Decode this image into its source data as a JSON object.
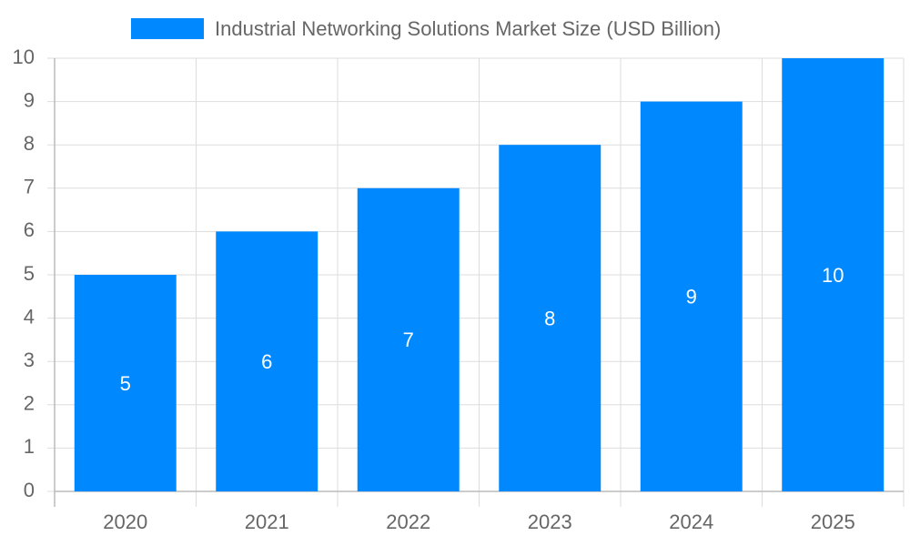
{
  "chart_data": {
    "type": "bar",
    "categories": [
      "2020",
      "2021",
      "2022",
      "2023",
      "2024",
      "2025"
    ],
    "series": [
      {
        "name": "Industrial Networking Solutions Market Size (USD Billion)",
        "color": "#0088ff",
        "values": [
          5,
          6,
          7,
          8,
          9,
          10
        ]
      }
    ],
    "ylim": [
      0,
      10
    ],
    "yticks": [
      0,
      1,
      2,
      3,
      4,
      5,
      6,
      7,
      8,
      9,
      10
    ],
    "grid": true,
    "legend": "top",
    "value_labels_position": "center"
  }
}
